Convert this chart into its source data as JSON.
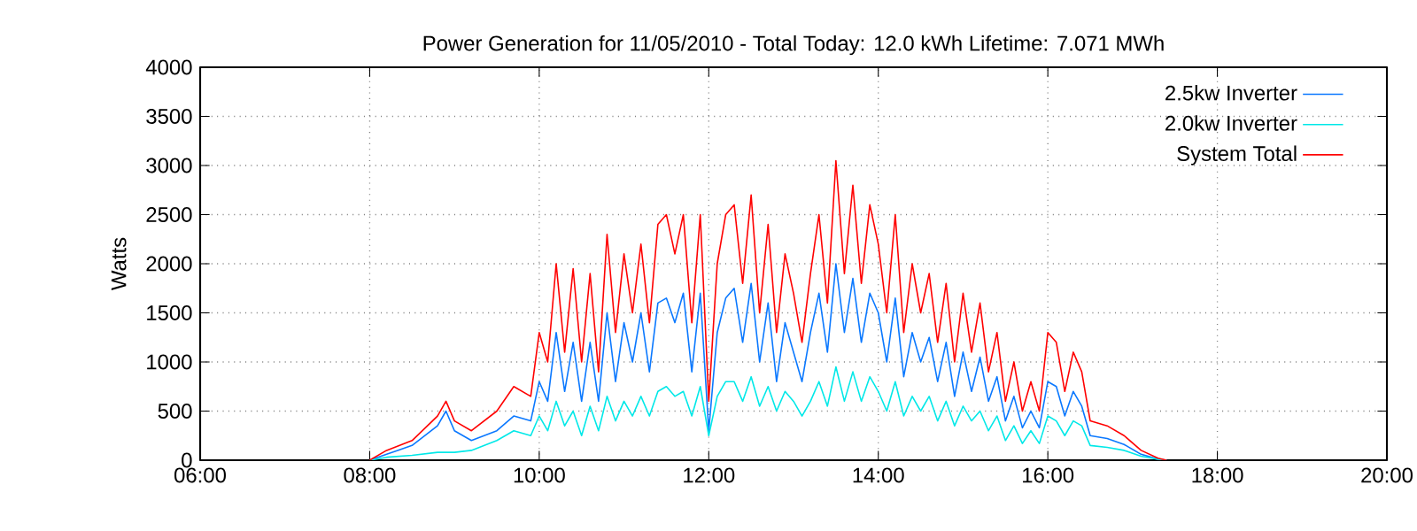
{
  "chart_data": {
    "type": "line",
    "title": "Power Generation for 11/05/2010 - Total Today: 12.0 kWh   Lifetime: 7.071 MWh",
    "ylabel": "Watts",
    "x": [
      8.0,
      8.2,
      8.5,
      8.8,
      8.9,
      9.0,
      9.2,
      9.5,
      9.7,
      9.9,
      10.0,
      10.1,
      10.2,
      10.3,
      10.4,
      10.5,
      10.6,
      10.7,
      10.8,
      10.9,
      11.0,
      11.1,
      11.2,
      11.3,
      11.4,
      11.5,
      11.6,
      11.7,
      11.8,
      11.9,
      12.0,
      12.1,
      12.2,
      12.3,
      12.4,
      12.5,
      12.6,
      12.7,
      12.8,
      12.9,
      13.0,
      13.1,
      13.2,
      13.3,
      13.4,
      13.5,
      13.6,
      13.7,
      13.8,
      13.9,
      14.0,
      14.1,
      14.2,
      14.3,
      14.4,
      14.5,
      14.6,
      14.7,
      14.8,
      14.9,
      15.0,
      15.1,
      15.2,
      15.3,
      15.4,
      15.5,
      15.6,
      15.7,
      15.8,
      15.9,
      16.0,
      16.1,
      16.2,
      16.3,
      16.4,
      16.5,
      16.7,
      16.9,
      17.1,
      17.3,
      17.4
    ],
    "series": [
      {
        "name": "2.5kw Inverter",
        "color": "#0a78ff",
        "values": [
          0,
          60,
          150,
          350,
          500,
          300,
          200,
          300,
          450,
          400,
          800,
          600,
          1300,
          700,
          1200,
          600,
          1200,
          600,
          1500,
          800,
          1400,
          1000,
          1500,
          900,
          1600,
          1650,
          1400,
          1700,
          900,
          1700,
          300,
          1300,
          1650,
          1750,
          1200,
          1800,
          1000,
          1600,
          800,
          1400,
          1100,
          800,
          1300,
          1700,
          1100,
          2000,
          1300,
          1850,
          1200,
          1700,
          1500,
          1000,
          1650,
          850,
          1300,
          1000,
          1250,
          800,
          1200,
          650,
          1100,
          700,
          1050,
          600,
          850,
          400,
          650,
          330,
          500,
          330,
          800,
          750,
          450,
          700,
          550,
          250,
          220,
          160,
          60,
          10,
          0
        ]
      },
      {
        "name": "2.0kw Inverter",
        "color": "#00e8e8",
        "values": [
          0,
          30,
          50,
          80,
          80,
          80,
          100,
          200,
          300,
          250,
          450,
          300,
          600,
          350,
          500,
          250,
          550,
          300,
          650,
          400,
          600,
          450,
          650,
          450,
          700,
          750,
          650,
          700,
          450,
          750,
          250,
          650,
          800,
          800,
          600,
          850,
          550,
          750,
          500,
          700,
          600,
          450,
          600,
          800,
          550,
          950,
          600,
          900,
          600,
          850,
          700,
          500,
          800,
          450,
          650,
          500,
          650,
          400,
          600,
          350,
          550,
          400,
          500,
          300,
          450,
          200,
          350,
          170,
          300,
          170,
          450,
          400,
          250,
          400,
          350,
          150,
          130,
          100,
          40,
          10,
          0
        ]
      },
      {
        "name": "System Total",
        "color": "#ff0000",
        "values": [
          0,
          100,
          200,
          450,
          600,
          400,
          300,
          500,
          750,
          650,
          1300,
          1000,
          2000,
          1100,
          1950,
          1000,
          1900,
          900,
          2300,
          1300,
          2100,
          1500,
          2200,
          1400,
          2400,
          2500,
          2100,
          2500,
          1400,
          2500,
          600,
          2000,
          2500,
          2600,
          1800,
          2700,
          1500,
          2400,
          1300,
          2100,
          1700,
          1200,
          1900,
          2500,
          1600,
          3050,
          1900,
          2800,
          1800,
          2600,
          2200,
          1500,
          2500,
          1300,
          2000,
          1500,
          1900,
          1200,
          1800,
          1000,
          1700,
          1100,
          1600,
          900,
          1300,
          600,
          1000,
          500,
          800,
          500,
          1300,
          1200,
          700,
          1100,
          900,
          400,
          350,
          250,
          100,
          20,
          0
        ]
      }
    ],
    "xlim": [
      6,
      20
    ],
    "xticks": [
      {
        "value": 6,
        "label": "06:00"
      },
      {
        "value": 8,
        "label": "08:00"
      },
      {
        "value": 10,
        "label": "10:00"
      },
      {
        "value": 12,
        "label": "12:00"
      },
      {
        "value": 14,
        "label": "14:00"
      },
      {
        "value": 16,
        "label": "16:00"
      },
      {
        "value": 18,
        "label": "18:00"
      },
      {
        "value": 20,
        "label": "20:00"
      }
    ],
    "ylim": [
      0,
      4000
    ],
    "yticks": [
      0,
      500,
      1000,
      1500,
      2000,
      2500,
      3000,
      3500,
      4000
    ],
    "grid": true,
    "legend": "top right",
    "marker": "none",
    "line_style": "solid"
  }
}
